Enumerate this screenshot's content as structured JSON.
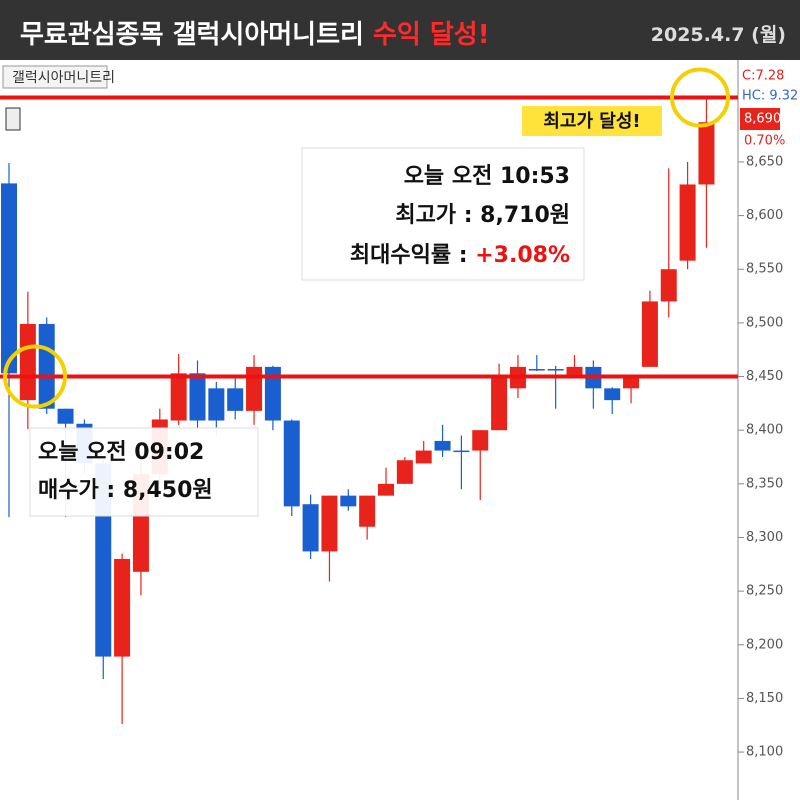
{
  "header": {
    "title": "무료관심종목 갤럭시아머니트리",
    "highlight": "수익 달성!",
    "date": "2025.4.7 (월)"
  },
  "chart_data": {
    "type": "candlestick",
    "label": "갤럭시아머니트리",
    "open": [
      8630,
      8428,
      8499,
      8420,
      8406,
      8369,
      8189,
      8268,
      8359,
      8409,
      8453,
      8439,
      8439,
      8418,
      8459,
      8409,
      8331,
      8287,
      8339,
      8310,
      8339,
      8350,
      8369,
      8390,
      8381,
      8381,
      8400,
      8439,
      8457,
      8457,
      8450,
      8459,
      8439,
      8439,
      8459,
      8520,
      8558,
      8629
    ],
    "high": [
      8649,
      8529,
      8505,
      8420,
      8410,
      8372,
      8285,
      8380,
      8420,
      8471,
      8465,
      8445,
      8450,
      8470,
      8460,
      8410,
      8340,
      8339,
      8345,
      8339,
      8365,
      8375,
      8390,
      8405,
      8395,
      8400,
      8462,
      8470,
      8470,
      8460,
      8470,
      8465,
      8440,
      8450,
      8530,
      8644,
      8650,
      8710
    ],
    "low": [
      8319,
      8401,
      8415,
      8319,
      8360,
      8168,
      8126,
      8246,
      8350,
      8405,
      8400,
      8395,
      8410,
      8405,
      8400,
      8320,
      8280,
      8259,
      8325,
      8298,
      8339,
      8350,
      8369,
      8375,
      8345,
      8335,
      8400,
      8430,
      8455,
      8420,
      8450,
      8420,
      8415,
      8425,
      8459,
      8505,
      8550,
      8570
    ],
    "close": [
      8453,
      8499,
      8420,
      8406,
      8369,
      8189,
      8280,
      8359,
      8410,
      8453,
      8409,
      8409,
      8418,
      8459,
      8409,
      8329,
      8287,
      8339,
      8329,
      8339,
      8350,
      8372,
      8381,
      8381,
      8381,
      8400,
      8450,
      8459,
      8457,
      8457,
      8459,
      8439,
      8428,
      8450,
      8520,
      8550,
      8629,
      8687
    ],
    "up_color": "#e8231b",
    "down_color": "#1a5fd0",
    "ylim": [
      8060,
      8745
    ],
    "yticks": [
      {
        "value": 8100,
        "label": "8,100"
      },
      {
        "value": 8150,
        "label": "8,150"
      },
      {
        "value": 8200,
        "label": "8,200"
      },
      {
        "value": 8250,
        "label": "8,250"
      },
      {
        "value": 8300,
        "label": "8,300"
      },
      {
        "value": 8350,
        "label": "8,350"
      },
      {
        "value": 8400,
        "label": "8,400"
      },
      {
        "value": 8450,
        "label": "8,450"
      },
      {
        "value": 8500,
        "label": "8,500"
      },
      {
        "value": 8550,
        "label": "8,550"
      },
      {
        "value": 8600,
        "label": "8,600"
      },
      {
        "value": 8650,
        "label": "8,650"
      }
    ],
    "axis_header": [
      "C:7.28",
      "HC: 9.32"
    ],
    "price_box": {
      "value": 8690,
      "label": "8,690",
      "change": "0.70%"
    },
    "reference_lines": [
      8450,
      8710
    ],
    "annotations": {
      "peak_badge": "최고가 달성!",
      "peak": [
        "오늘 오전 10:53",
        "최고가 : 8,710원",
        "최대수익률 : ",
        "+3.08%"
      ],
      "buy": [
        "오늘 오전 09:02",
        "매수가 : 8,450원"
      ]
    }
  }
}
